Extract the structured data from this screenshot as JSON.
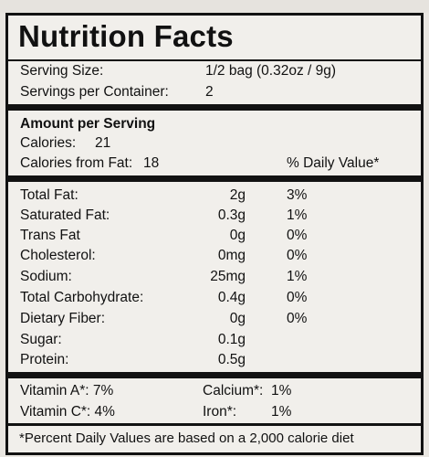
{
  "title": "Nutrition Facts",
  "serving": {
    "size_label": "Serving Size:",
    "size_value": "1/2 bag (0.32oz / 9g)",
    "per_container_label": "Servings per Container:",
    "per_container_value": "2"
  },
  "amount": {
    "heading": "Amount per Serving",
    "calories_label": "Calories:",
    "calories_value": "21",
    "fat_cal_label": "Calories from Fat:",
    "fat_cal_value": "18",
    "dv_header": "% Daily Value*"
  },
  "nutrients": [
    {
      "name": "Total Fat:",
      "amount": "2g",
      "dv": "3%"
    },
    {
      "name": "Saturated Fat:",
      "amount": "0.3g",
      "dv": "1%"
    },
    {
      "name": "Trans Fat",
      "amount": "0g",
      "dv": "0%"
    },
    {
      "name": "Cholesterol:",
      "amount": "0mg",
      "dv": "0%"
    },
    {
      "name": "Sodium:",
      "amount": "25mg",
      "dv": "1%"
    },
    {
      "name": "Total Carbohydrate:",
      "amount": "0.4g",
      "dv": "0%"
    },
    {
      "name": "Dietary Fiber:",
      "amount": "0g",
      "dv": "0%"
    },
    {
      "name": "Sugar:",
      "amount": "0.1g",
      "dv": ""
    },
    {
      "name": "Protein:",
      "amount": "0.5g",
      "dv": ""
    }
  ],
  "vitamins": {
    "vit_a": "Vitamin A*: 7%",
    "vit_c": "Vitamin C*: 4%",
    "calcium_label": "Calcium*:",
    "calcium_value": "1%",
    "iron_label": "Iron*:",
    "iron_value": "1%"
  },
  "footnote": "*Percent Daily Values are based on a 2,000 calorie diet"
}
